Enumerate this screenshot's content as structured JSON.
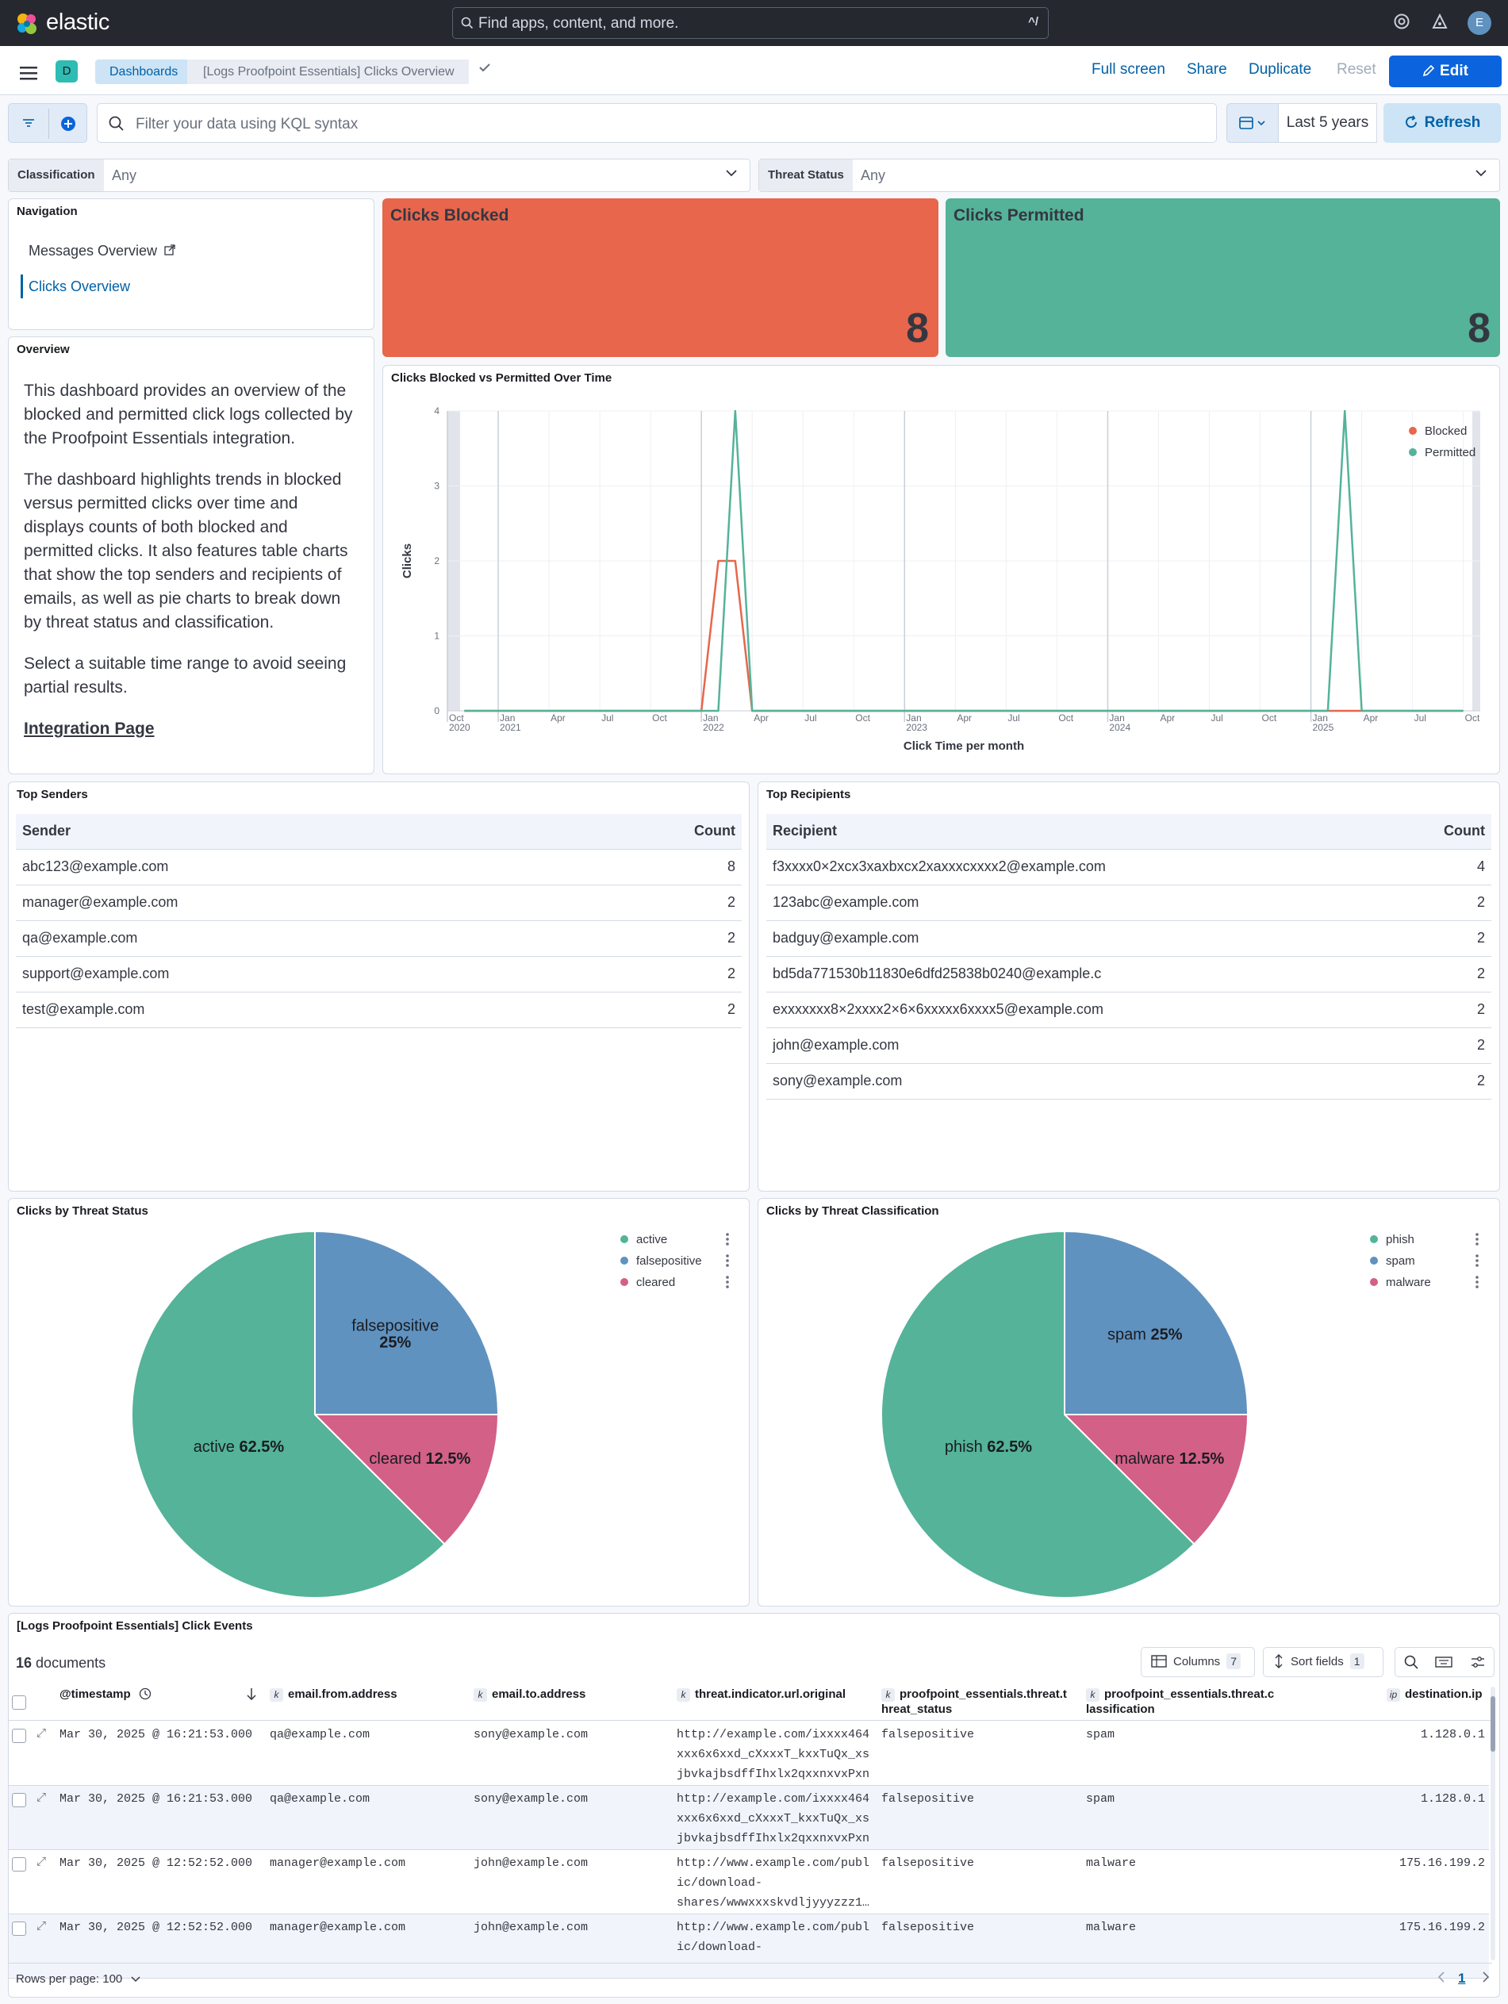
{
  "header": {
    "brand": "elastic",
    "search_placeholder": "Find apps, content, and more.",
    "search_shortcut": "^/",
    "avatar_initial": "E"
  },
  "subnav": {
    "space_initial": "D",
    "breadcrumbs": [
      "Dashboards",
      "[Logs Proofpoint Essentials] Clicks Overview"
    ],
    "actions": {
      "full_screen": "Full screen",
      "share": "Share",
      "duplicate": "Duplicate",
      "reset": "Reset",
      "edit": "Edit"
    }
  },
  "query": {
    "placeholder": "Filter your data using KQL syntax",
    "date_range": "Last 5 years",
    "refresh": "Refresh"
  },
  "controls": [
    {
      "label": "Classification",
      "value": "Any"
    },
    {
      "label": "Threat Status",
      "value": "Any"
    }
  ],
  "navigation": {
    "title": "Navigation",
    "items": [
      {
        "label": "Messages Overview",
        "active": false
      },
      {
        "label": "Clicks Overview",
        "active": true
      }
    ]
  },
  "overview": {
    "title": "Overview",
    "paragraphs": [
      "This dashboard provides an overview of the blocked and permitted click logs collected by the Proofpoint Essentials integration.",
      "The dashboard highlights trends in blocked versus permitted clicks over time and displays counts of both blocked and permitted clicks. It also features table charts that show the top senders and recipients of emails, as well as pie charts to break down by threat status and classification.",
      "Select a suitable time range to avoid seeing partial results."
    ],
    "link": "Integration Page"
  },
  "metrics": {
    "blocked": {
      "title": "Clicks Blocked",
      "value": "8",
      "color": "#e7664c"
    },
    "permitted": {
      "title": "Clicks Permitted",
      "value": "8",
      "color": "#54b399"
    }
  },
  "colors": {
    "blocked": "#e7664c",
    "permitted": "#54b399",
    "falsepositive": "#6092c0",
    "cleared": "#d36086"
  },
  "chart_data": [
    {
      "type": "line",
      "title": "Clicks Blocked vs Permitted Over Time",
      "xlabel": "Click Time per month",
      "ylabel": "Clicks",
      "ylim": [
        0,
        4
      ],
      "yticks": [
        0,
        1,
        2,
        3,
        4
      ],
      "xlim": [
        "2020-10",
        "2025-11"
      ],
      "x_ticks": [
        {
          "m": "2020-10",
          "label": "Oct",
          "year": "2020"
        },
        {
          "m": "2021-01",
          "label": "Jan",
          "year": "2021"
        },
        {
          "m": "2021-04",
          "label": "Apr",
          "year": ""
        },
        {
          "m": "2021-07",
          "label": "Jul",
          "year": ""
        },
        {
          "m": "2021-10",
          "label": "Oct",
          "year": ""
        },
        {
          "m": "2022-01",
          "label": "Jan",
          "year": "2022"
        },
        {
          "m": "2022-04",
          "label": "Apr",
          "year": ""
        },
        {
          "m": "2022-07",
          "label": "Jul",
          "year": ""
        },
        {
          "m": "2022-10",
          "label": "Oct",
          "year": ""
        },
        {
          "m": "2023-01",
          "label": "Jan",
          "year": "2023"
        },
        {
          "m": "2023-04",
          "label": "Apr",
          "year": ""
        },
        {
          "m": "2023-07",
          "label": "Jul",
          "year": ""
        },
        {
          "m": "2023-10",
          "label": "Oct",
          "year": ""
        },
        {
          "m": "2024-01",
          "label": "Jan",
          "year": "2024"
        },
        {
          "m": "2024-04",
          "label": "Apr",
          "year": ""
        },
        {
          "m": "2024-07",
          "label": "Jul",
          "year": ""
        },
        {
          "m": "2024-10",
          "label": "Oct",
          "year": ""
        },
        {
          "m": "2025-01",
          "label": "Jan",
          "year": "2025"
        },
        {
          "m": "2025-04",
          "label": "Apr",
          "year": ""
        },
        {
          "m": "2025-07",
          "label": "Jul",
          "year": ""
        },
        {
          "m": "2025-10",
          "label": "Oct",
          "year": ""
        }
      ],
      "legend_position": "top-right",
      "series": [
        {
          "name": "Blocked",
          "color": "#e7664c",
          "points": [
            [
              "2020-11",
              0
            ],
            [
              "2022-01",
              0
            ],
            [
              "2022-02",
              2
            ],
            [
              "2022-03",
              2
            ],
            [
              "2022-04",
              0
            ],
            [
              "2025-10",
              0
            ]
          ]
        },
        {
          "name": "Permitted",
          "color": "#54b399",
          "points": [
            [
              "2020-11",
              0
            ],
            [
              "2022-02",
              0
            ],
            [
              "2022-03",
              4
            ],
            [
              "2022-04",
              0
            ],
            [
              "2025-02",
              0
            ],
            [
              "2025-03",
              4
            ],
            [
              "2025-04",
              0
            ],
            [
              "2025-10",
              0
            ]
          ]
        }
      ]
    },
    {
      "type": "pie",
      "title": "Clicks by Threat Status",
      "slices": [
        {
          "label": "falsepositive",
          "value": 25,
          "pct": "25%",
          "color": "#6092c0"
        },
        {
          "label": "cleared",
          "value": 12.5,
          "pct": "12.5%",
          "color": "#d36086"
        },
        {
          "label": "active",
          "value": 62.5,
          "pct": "62.5%",
          "color": "#54b399"
        }
      ],
      "legend": [
        "active",
        "falsepositive",
        "cleared"
      ]
    },
    {
      "type": "pie",
      "title": "Clicks by Threat Classification",
      "slices": [
        {
          "label": "spam",
          "value": 25,
          "pct": "25%",
          "color": "#6092c0"
        },
        {
          "label": "malware",
          "value": 12.5,
          "pct": "12.5%",
          "color": "#d36086"
        },
        {
          "label": "phish",
          "value": 62.5,
          "pct": "62.5%",
          "color": "#54b399"
        }
      ],
      "legend": [
        "phish",
        "spam",
        "malware"
      ]
    }
  ],
  "top_senders": {
    "title": "Top Senders",
    "columns": [
      "Sender",
      "Count"
    ],
    "rows": [
      [
        "abc123@example.com",
        "8"
      ],
      [
        "manager@example.com",
        "2"
      ],
      [
        "qa@example.com",
        "2"
      ],
      [
        "support@example.com",
        "2"
      ],
      [
        "test@example.com",
        "2"
      ]
    ]
  },
  "top_recipients": {
    "title": "Top Recipients",
    "columns": [
      "Recipient",
      "Count"
    ],
    "rows": [
      [
        "f3xxxx0×2xcx3xaxbxcx2xaxxxcxxxx2@example.com",
        "4"
      ],
      [
        "123abc@example.com",
        "2"
      ],
      [
        "badguy@example.com",
        "2"
      ],
      [
        "bd5da771530b11830e6dfd25838b0240@example.c",
        "2"
      ],
      [
        "exxxxxxx8×2xxxx2×6×6xxxxx6xxxx5@example.com",
        "2"
      ],
      [
        "john@example.com",
        "2"
      ],
      [
        "sony@example.com",
        "2"
      ]
    ]
  },
  "events": {
    "title": "[Logs Proofpoint Essentials] Click Events",
    "doc_count": "16",
    "doc_suffix": "documents",
    "columns_label": "Columns",
    "columns_count": "7",
    "sort_label": "Sort fields",
    "sort_count": "1",
    "headers": [
      "@timestamp",
      "email.from.address",
      "email.to.address",
      "threat.indicator.url.original",
      "proofpoint_essentials.threat.t hreat_status",
      "proofpoint_essentials.threat.c lassification",
      "destination.ip"
    ],
    "rows": [
      {
        "ts": "Mar 30, 2025 @ 16:21:53.000",
        "from": "qa@example.com",
        "to": "sony@example.com",
        "url": [
          "http://example.com/ixxxx464",
          "xxx6x6xxd_cXxxxT_kxxTuQx_xs",
          "jbvkajbsdffIhxlx2qxxnxvxPxn"
        ],
        "status": "falsepositive",
        "cls": "spam",
        "ip": "1.128.0.1"
      },
      {
        "ts": "Mar 30, 2025 @ 16:21:53.000",
        "from": "qa@example.com",
        "to": "sony@example.com",
        "url": [
          "http://example.com/ixxxx464",
          "xxx6x6xxd_cXxxxT_kxxTuQx_xs",
          "jbvkajbsdffIhxlx2qxxnxvxPxn"
        ],
        "status": "falsepositive",
        "cls": "spam",
        "ip": "1.128.0.1"
      },
      {
        "ts": "Mar 30, 2025 @ 12:52:52.000",
        "from": "manager@example.com",
        "to": "john@example.com",
        "url": [
          "http://www.example.com/publ",
          "ic/download-",
          "shares/wwwxxxskvdljyyyzzz1…"
        ],
        "status": "falsepositive",
        "cls": "malware",
        "ip": "175.16.199.2"
      },
      {
        "ts": "Mar 30, 2025 @ 12:52:52.000",
        "from": "manager@example.com",
        "to": "john@example.com",
        "url": [
          "http://www.example.com/publ",
          "ic/download-"
        ],
        "status": "falsepositive",
        "cls": "malware",
        "ip": "175.16.199.2"
      }
    ],
    "rows_per_page": "Rows per page: 100",
    "page": "1"
  }
}
